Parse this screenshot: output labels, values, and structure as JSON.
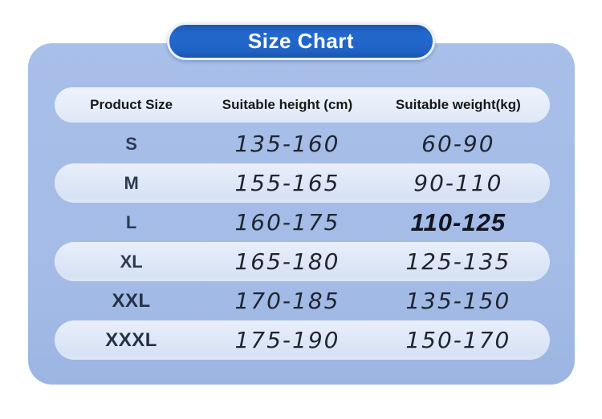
{
  "header": {
    "title": "Size Chart"
  },
  "colors": {
    "badge_blue": "#2063c6",
    "badge_border": "#e9f1fb",
    "panel_blue": "#a4bce7",
    "row_pill": "#dde7f7",
    "header_text": "#17181c",
    "size_text": "#2d3b52",
    "number_text": "#1f2630",
    "title_text": "#ffffff",
    "page_background": "#ffffff"
  },
  "chart_data": {
    "type": "table",
    "title": "Size Chart",
    "columns": [
      "Product Size",
      "Suitable height (cm)",
      "Suitable weight(kg)"
    ],
    "rows": [
      {
        "size": "S",
        "height_cm": "135-160",
        "weight_kg": "60-90",
        "size_bold": false,
        "weight_emphasis": false
      },
      {
        "size": "M",
        "height_cm": "155-165",
        "weight_kg": "90-110",
        "size_bold": false,
        "weight_emphasis": false
      },
      {
        "size": "L",
        "height_cm": "160-175",
        "weight_kg": "110-125",
        "size_bold": false,
        "weight_emphasis": true
      },
      {
        "size": "XL",
        "height_cm": "165-180",
        "weight_kg": "125-135",
        "size_bold": false,
        "weight_emphasis": false
      },
      {
        "size": "XXL",
        "height_cm": "170-185",
        "weight_kg": "135-150",
        "size_bold": true,
        "weight_emphasis": false
      },
      {
        "size": "XXXL",
        "height_cm": "175-190",
        "weight_kg": "150-170",
        "size_bold": true,
        "weight_emphasis": false
      }
    ]
  }
}
